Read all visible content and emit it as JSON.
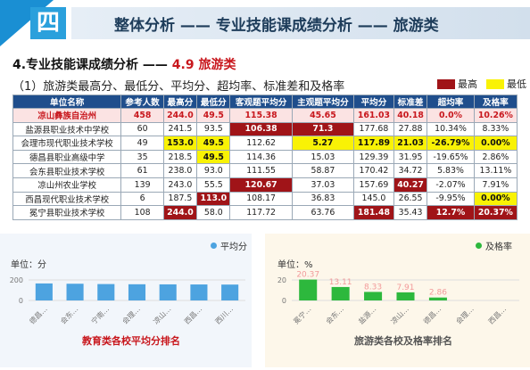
{
  "header": {
    "section_num": "四",
    "title": "整体分析 —— 专业技能课成绩分析 —— 旅游类"
  },
  "subtitle": {
    "prefix": "4.专业技能课成绩分析 ——",
    "suffix": " 4.9 旅游类"
  },
  "description": "（1）旅游类最高分、最低分、平均分、超均率、标准差和及格率",
  "legend": {
    "high_label": "最高",
    "low_label": "最低",
    "high_color": "#a01418",
    "low_color": "#f9f205"
  },
  "table": {
    "columns": [
      "单位名称",
      "参考人数",
      "最高分",
      "最低分",
      "客观题平均分",
      "主观题平均分",
      "平均分",
      "标准差",
      "超均率",
      "及格率"
    ],
    "rows": [
      [
        "凉山彝族自治州",
        "458",
        "244.0",
        "49.5",
        "115.38",
        "45.65",
        "161.03",
        "40.18",
        "0.0%",
        "10.26%"
      ],
      [
        "盐源县职业技术中学校",
        "60",
        "241.5",
        "93.5",
        "106.38",
        "71.3",
        "177.68",
        "27.88",
        "10.34%",
        "8.33%"
      ],
      [
        "会理市现代职业技术学校",
        "49",
        "153.0",
        "49.5",
        "112.62",
        "5.27",
        "117.89",
        "21.03",
        "-26.79%",
        "0.00%"
      ],
      [
        "德昌县职业高级中学",
        "35",
        "218.5",
        "49.5",
        "114.36",
        "15.03",
        "129.39",
        "31.95",
        "-19.65%",
        "2.86%"
      ],
      [
        "会东县职业技术学校",
        "61",
        "238.0",
        "93.0",
        "111.55",
        "58.87",
        "170.42",
        "34.72",
        "5.83%",
        "13.11%"
      ],
      [
        "凉山州农业学校",
        "139",
        "243.0",
        "55.5",
        "120.67",
        "37.03",
        "157.69",
        "40.27",
        "-2.07%",
        "7.91%"
      ],
      [
        "西昌现代职业技术学校",
        "6",
        "187.5",
        "113.0",
        "108.17",
        "36.83",
        "145.0",
        "26.55",
        "-9.95%",
        "0.00%"
      ],
      [
        "冕宁县职业技术学校",
        "108",
        "244.0",
        "58.0",
        "117.72",
        "63.76",
        "181.48",
        "35.43",
        "12.7%",
        "20.37%"
      ]
    ],
    "cell_marks": [
      [
        "",
        "",
        "",
        "",
        "",
        "",
        "",
        "",
        "",
        ""
      ],
      [
        "",
        "",
        "",
        "",
        "hi",
        "hi",
        "",
        "",
        "",
        ""
      ],
      [
        "",
        "",
        "lo",
        "lo",
        "",
        "lo",
        "lo",
        "lo",
        "lo",
        "lo"
      ],
      [
        "",
        "",
        "",
        "lo",
        "",
        "",
        "",
        "",
        "",
        ""
      ],
      [
        "",
        "",
        "",
        "",
        "",
        "",
        "",
        "",
        "",
        ""
      ],
      [
        "",
        "",
        "",
        "",
        "hi",
        "",
        "",
        "hi",
        "",
        ""
      ],
      [
        "",
        "",
        "",
        "hi",
        "",
        "",
        "",
        "",
        "",
        "lo"
      ],
      [
        "",
        "",
        "hi",
        "",
        "",
        "",
        "hi",
        "",
        "hi",
        "hi"
      ]
    ]
  },
  "left_panel": {
    "legend_label": "平均分",
    "unit_label": "单位：分",
    "title": "教育类各校平均分排名",
    "chart_data": {
      "type": "bar",
      "ylim": [
        0,
        200
      ],
      "yticks": [
        "0",
        "200"
      ],
      "categories": [
        "德昌…",
        "会东…",
        "宁南…",
        "会理…",
        "凉山…",
        "西昌…",
        "西川…"
      ],
      "values": [
        166,
        163,
        160,
        158,
        157,
        156,
        155
      ],
      "color": "#4da3e0"
    }
  },
  "right_panel": {
    "legend_label": "及格率",
    "unit_label": "单位：%",
    "title": "旅游类各校及格率排名",
    "chart_data": {
      "type": "bar",
      "ylim": [
        0,
        20
      ],
      "yticks": [
        "0",
        "20"
      ],
      "categories": [
        "冕宁…",
        "会东…",
        "盐源…",
        "凉山…",
        "德昌…",
        "会理…",
        "西昌…"
      ],
      "values": [
        20.37,
        13.11,
        8.33,
        7.91,
        2.86,
        0,
        0
      ],
      "value_labels": [
        "20.37",
        "13.11",
        "8.33",
        "7.91",
        "2.86",
        "",
        ""
      ],
      "color": "#2db83d",
      "label_color": "#f29a9a"
    }
  }
}
